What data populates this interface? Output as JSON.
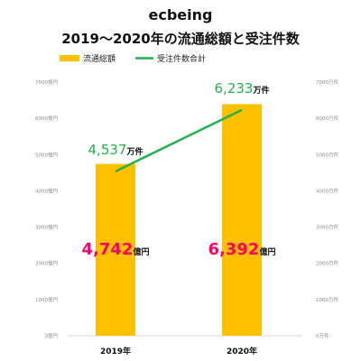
{
  "chart_data": {
    "type": "bar",
    "brand": "ecbeing",
    "title": "2019～2020年の流通総額と受注件数",
    "categories": [
      "2019年",
      "2020年"
    ],
    "bar_series": {
      "name": "流通総額",
      "values": [
        4742,
        6392
      ],
      "label_values": [
        "4,742",
        "6,392"
      ],
      "label_unit": "億円",
      "color": "#ffc000",
      "label_color": "#ff0066"
    },
    "line_series": {
      "name": "受注件数合計",
      "values": [
        4537,
        6233
      ],
      "label_values": [
        "4,537",
        "6,233"
      ],
      "label_unit": "万件",
      "color": "#22b14c"
    },
    "left_axis": {
      "range": [
        0,
        7000
      ],
      "ticks": [
        0,
        1000,
        2000,
        3000,
        4000,
        5000,
        6000,
        7000
      ],
      "tick_labels": [
        "0億円",
        "1000億円",
        "2000億円",
        "3000億円",
        "4000億円",
        "5000億円",
        "6000億円",
        "7000億円"
      ]
    },
    "right_axis": {
      "range": [
        0,
        7000
      ],
      "ticks": [
        0,
        1000,
        2000,
        3000,
        4000,
        5000,
        6000,
        7000
      ],
      "tick_labels": [
        "0万件",
        "1000万件",
        "2000万件",
        "3000万件",
        "4000万件",
        "5000万件",
        "6000万件",
        "7000万件"
      ]
    },
    "grid": false,
    "legend_position": "top-left"
  }
}
